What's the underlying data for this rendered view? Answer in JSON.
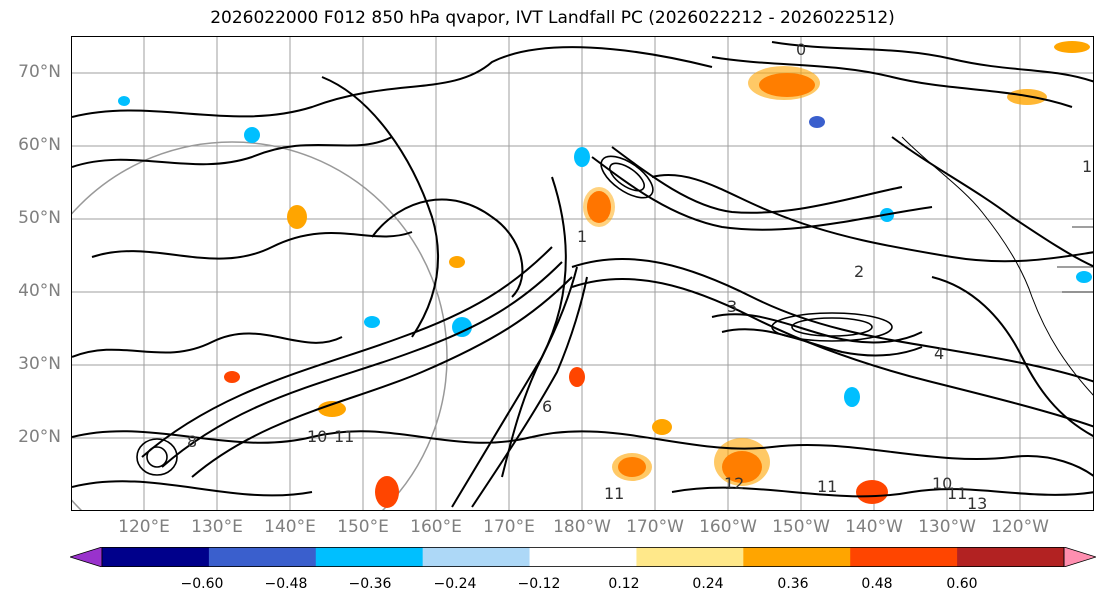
{
  "title": "2026022000 F012 850 hPa qvapor, IVT Landfall PC (2026022212 - 2026022512)",
  "lat_labels": [
    "70°N",
    "60°N",
    "50°N",
    "40°N",
    "30°N",
    "20°N"
  ],
  "lon_labels": [
    "120°E",
    "130°E",
    "140°E",
    "150°E",
    "160°E",
    "170°E",
    "180°W",
    "170°W",
    "160°W",
    "150°W",
    "140°W",
    "130°W",
    "120°W"
  ],
  "colorbar": {
    "ticks": [
      "−0.60",
      "−0.48",
      "−0.36",
      "−0.24",
      "−0.12",
      "0.12",
      "0.24",
      "0.36",
      "0.48",
      "0.60"
    ],
    "colors": [
      "#9932cc",
      "#00008b",
      "#3a5fcd",
      "#00bfff",
      "#add8f7",
      "#ffffff",
      "#ffe88a",
      "#ffa500",
      "#ff4500",
      "#b22222",
      "#ff8fb0"
    ]
  },
  "contour_labels": [
    "1",
    "1",
    "2",
    "3",
    "4",
    "6",
    "8",
    "10",
    "11",
    "11",
    "11",
    "12",
    "10",
    "11",
    "13",
    "0"
  ],
  "colors": {
    "grid": "#888888",
    "axis_label": "#7f7f7f",
    "contour": "#000000"
  }
}
